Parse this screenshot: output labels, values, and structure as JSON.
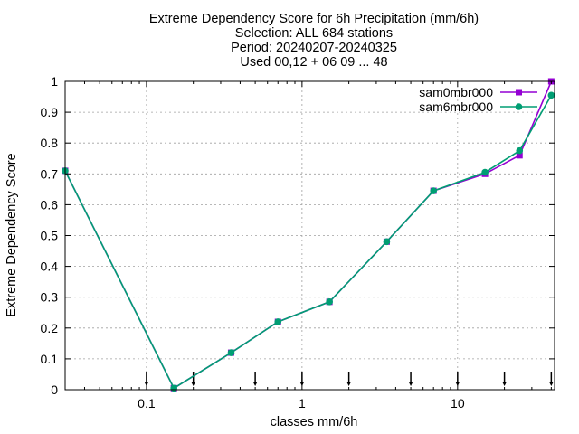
{
  "chart_data": {
    "type": "line",
    "title_lines": [
      "Extreme Dependency Score  for 6h Precipitation (mm/6h)",
      "Selection: ALL    684 stations",
      "Period: 20240207-20240325",
      "Used 00,12 + 06 09 ... 48"
    ],
    "xlabel": "classes mm/6h",
    "ylabel": "Extreme Dependency Score",
    "x_scale": "log",
    "xlim": [
      0.03,
      42
    ],
    "ylim": [
      0,
      1
    ],
    "x_ticks": [
      {
        "value": 0.1,
        "label": "0.1"
      },
      {
        "value": 1,
        "label": "1"
      },
      {
        "value": 10,
        "label": "10"
      }
    ],
    "y_ticks": [
      {
        "value": 0,
        "label": "0"
      },
      {
        "value": 0.1,
        "label": "0.1"
      },
      {
        "value": 0.2,
        "label": "0.2"
      },
      {
        "value": 0.3,
        "label": "0.3"
      },
      {
        "value": 0.4,
        "label": "0.4"
      },
      {
        "value": 0.5,
        "label": "0.5"
      },
      {
        "value": 0.6,
        "label": "0.6"
      },
      {
        "value": 0.7,
        "label": "0.7"
      },
      {
        "value": 0.8,
        "label": "0.8"
      },
      {
        "value": 0.9,
        "label": "0.9"
      },
      {
        "value": 1,
        "label": "1"
      }
    ],
    "grid": true,
    "legend_position": "top-right",
    "class_markers": [
      0.1,
      0.2,
      0.5,
      1,
      2,
      5,
      10,
      20,
      40
    ],
    "series": [
      {
        "name": "sam0mbr000",
        "color": "#9400d3",
        "marker": "square",
        "x": [
          0.03,
          0.15,
          0.35,
          0.7,
          1.5,
          3.5,
          7,
          15,
          25,
          40
        ],
        "y": [
          0.71,
          0.005,
          0.12,
          0.22,
          0.285,
          0.48,
          0.645,
          0.7,
          0.76,
          1.0
        ]
      },
      {
        "name": "sam6mbr000",
        "color": "#009e73",
        "marker": "circle",
        "x": [
          0.03,
          0.15,
          0.35,
          0.7,
          1.5,
          3.5,
          7,
          15,
          25,
          40
        ],
        "y": [
          0.71,
          0.005,
          0.12,
          0.22,
          0.285,
          0.48,
          0.645,
          0.705,
          0.775,
          0.955
        ]
      }
    ]
  }
}
